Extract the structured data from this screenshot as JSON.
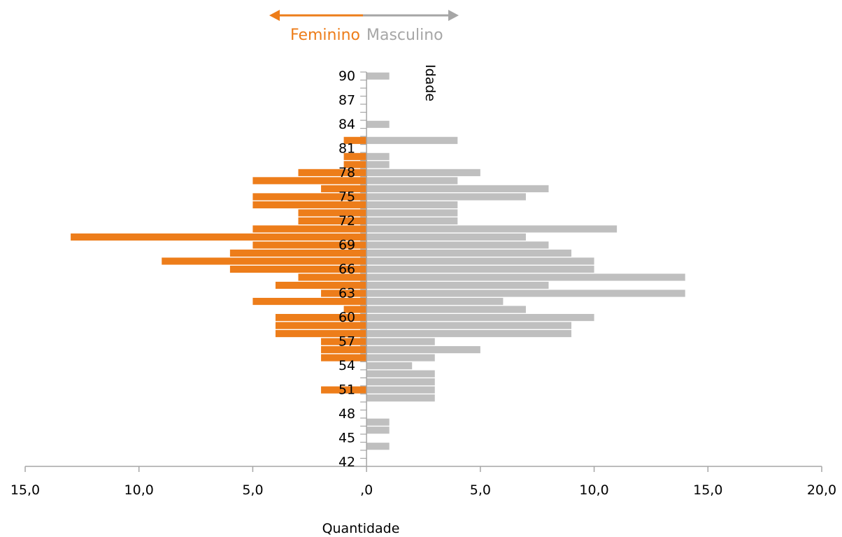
{
  "chart_data": {
    "type": "bar",
    "orientation": "horizontal-population-pyramid",
    "legend": {
      "female_label": "Feminino",
      "male_label": "Masculino",
      "placement": "top-center"
    },
    "xlabel": "Quantidade",
    "ylabel": "Idade",
    "xlim": [
      -15,
      20
    ],
    "x_ticks": [
      -15,
      -10,
      -5,
      0,
      5,
      10,
      15,
      20
    ],
    "x_tick_labels": [
      "15,0",
      "10,0",
      "5,0",
      ",0",
      "5,0",
      "10,0",
      "15,0",
      "20,0"
    ],
    "ylim": [
      42,
      91
    ],
    "y_tick_labels": [
      "42",
      "45",
      "48",
      "51",
      "54",
      "57",
      "60",
      "63",
      "66",
      "69",
      "72",
      "75",
      "78",
      "81",
      "84",
      "87",
      "90"
    ],
    "grid": false,
    "colors": {
      "female": "#ED7D1A",
      "male": "#BFBFBF",
      "axis": "#A6A6A6"
    },
    "series": [
      {
        "name": "Feminino",
        "ages": [
          51,
          55,
          56,
          57,
          58,
          59,
          60,
          61,
          62,
          63,
          64,
          65,
          66,
          67,
          68,
          69,
          70,
          71,
          72,
          73,
          74,
          75,
          76,
          77,
          78,
          79,
          80,
          82
        ],
        "values": [
          2,
          2,
          2,
          2,
          4,
          4,
          4,
          1,
          5,
          2,
          4,
          3,
          6,
          9,
          6,
          5,
          13,
          5,
          3,
          3,
          5,
          5,
          2,
          5,
          3,
          1,
          1,
          1
        ]
      },
      {
        "name": "Masculino",
        "ages": [
          44,
          46,
          47,
          50,
          51,
          52,
          53,
          54,
          55,
          56,
          57,
          58,
          59,
          60,
          61,
          62,
          63,
          64,
          65,
          66,
          67,
          68,
          69,
          70,
          71,
          72,
          73,
          74,
          75,
          76,
          77,
          78,
          79,
          80,
          82,
          84,
          90
        ],
        "values": [
          1,
          1,
          1,
          3,
          3,
          3,
          3,
          2,
          3,
          5,
          3,
          9,
          9,
          10,
          7,
          6,
          14,
          8,
          14,
          10,
          10,
          9,
          8,
          7,
          11,
          4,
          4,
          4,
          7,
          8,
          4,
          5,
          1,
          1,
          4,
          1,
          1
        ]
      }
    ]
  }
}
